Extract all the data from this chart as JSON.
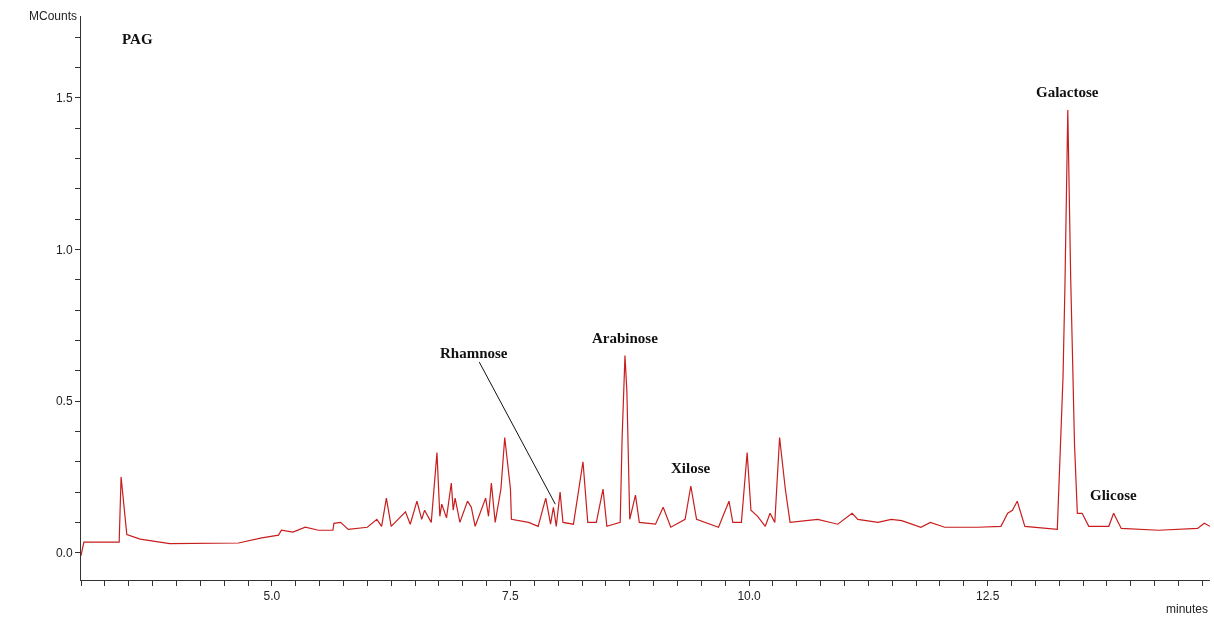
{
  "chart_data": {
    "type": "line",
    "title": "PAG",
    "xlabel": "minutes",
    "ylabel": "MCounts",
    "x": [
      3.0,
      3.03,
      3.4,
      3.42,
      3.48,
      3.62,
      3.93,
      4.65,
      4.88,
      5.07,
      5.1,
      5.22,
      5.35,
      5.49,
      5.64,
      5.65,
      5.72,
      5.8,
      6.0,
      6.1,
      6.15,
      6.2,
      6.25,
      6.4,
      6.45,
      6.52,
      6.57,
      6.6,
      6.67,
      6.73,
      6.76,
      6.78,
      6.83,
      6.88,
      6.9,
      6.92,
      6.97,
      7.05,
      7.09,
      7.13,
      7.24,
      7.27,
      7.3,
      7.34,
      7.4,
      7.44,
      7.5,
      7.51,
      7.69,
      7.79,
      7.87,
      7.92,
      7.95,
      7.98,
      8.02,
      8.05,
      8.16,
      8.26,
      8.31,
      8.4,
      8.47,
      8.51,
      8.65,
      8.67,
      8.7,
      8.72,
      8.75,
      8.81,
      8.85,
      9.02,
      9.1,
      9.18,
      9.33,
      9.39,
      9.45,
      9.68,
      9.79,
      9.83,
      9.92,
      9.98,
      10.02,
      10.09,
      10.17,
      10.22,
      10.27,
      10.32,
      10.38,
      10.43,
      10.72,
      10.93,
      11.08,
      11.14,
      11.35,
      11.49,
      11.6,
      11.8,
      11.9,
      12.05,
      12.4,
      12.64,
      12.71,
      12.76,
      12.81,
      12.89,
      13.23,
      13.29,
      13.31,
      13.34,
      13.37,
      13.39,
      13.41,
      13.44,
      13.49,
      13.56,
      13.77,
      13.82,
      13.9,
      14.29,
      14.7,
      14.77,
      14.83
    ],
    "series": [
      {
        "color": "#c81e1e",
        "values": [
          -0.01,
          0.035,
          0.035,
          0.25,
          0.06,
          0.045,
          0.03,
          0.032,
          0.048,
          0.058,
          0.074,
          0.068,
          0.084,
          0.074,
          0.074,
          0.097,
          0.1,
          0.077,
          0.084,
          0.11,
          0.087,
          0.18,
          0.087,
          0.135,
          0.094,
          0.17,
          0.11,
          0.14,
          0.1,
          0.33,
          0.12,
          0.16,
          0.115,
          0.23,
          0.14,
          0.18,
          0.1,
          0.17,
          0.15,
          0.087,
          0.18,
          0.12,
          0.23,
          0.1,
          0.21,
          0.38,
          0.21,
          0.11,
          0.1,
          0.087,
          0.18,
          0.094,
          0.15,
          0.087,
          0.2,
          0.1,
          0.094,
          0.3,
          0.1,
          0.1,
          0.21,
          0.087,
          0.1,
          0.38,
          0.65,
          0.53,
          0.11,
          0.19,
          0.1,
          0.094,
          0.15,
          0.084,
          0.11,
          0.22,
          0.11,
          0.084,
          0.17,
          0.1,
          0.1,
          0.33,
          0.14,
          0.12,
          0.087,
          0.13,
          0.1,
          0.38,
          0.21,
          0.1,
          0.11,
          0.094,
          0.13,
          0.11,
          0.1,
          0.11,
          0.106,
          0.084,
          0.1,
          0.084,
          0.084,
          0.087,
          0.13,
          0.14,
          0.17,
          0.087,
          0.077,
          0.58,
          0.88,
          1.46,
          0.91,
          0.64,
          0.36,
          0.13,
          0.13,
          0.087,
          0.087,
          0.13,
          0.08,
          0.074,
          0.08,
          0.097,
          0.087
        ]
      }
    ],
    "annotations": [
      {
        "text": "Rhamnose",
        "x": 7.97,
        "y": 0.16
      },
      {
        "text": "Arabinose",
        "x": 8.7,
        "y": 0.65
      },
      {
        "text": "Xilose",
        "x": 9.39,
        "y": 0.22
      },
      {
        "text": "Galactose",
        "x": 13.34,
        "y": 1.46
      },
      {
        "text": "Glicose",
        "x": 13.82,
        "y": 0.13
      }
    ],
    "xlim": [
      3.0,
      14.83
    ],
    "ylim": [
      -0.09,
      1.77
    ],
    "xticks": [
      {
        "value": 3.0,
        "label": null
      },
      {
        "value": 3.25,
        "label": null
      },
      {
        "value": 3.5,
        "label": null
      },
      {
        "value": 3.75,
        "label": null
      },
      {
        "value": 4.0,
        "label": null
      },
      {
        "value": 4.25,
        "label": null
      },
      {
        "value": 4.5,
        "label": null
      },
      {
        "value": 4.75,
        "label": null
      },
      {
        "value": 5.0,
        "label": "5.0"
      },
      {
        "value": 5.25,
        "label": null
      },
      {
        "value": 5.5,
        "label": null
      },
      {
        "value": 5.75,
        "label": null
      },
      {
        "value": 6.0,
        "label": null
      },
      {
        "value": 6.25,
        "label": null
      },
      {
        "value": 6.5,
        "label": null
      },
      {
        "value": 6.75,
        "label": null
      },
      {
        "value": 7.0,
        "label": null
      },
      {
        "value": 7.25,
        "label": null
      },
      {
        "value": 7.5,
        "label": "7.5"
      },
      {
        "value": 7.75,
        "label": null
      },
      {
        "value": 8.0,
        "label": null
      },
      {
        "value": 8.25,
        "label": null
      },
      {
        "value": 8.5,
        "label": null
      },
      {
        "value": 8.75,
        "label": null
      },
      {
        "value": 9.0,
        "label": null
      },
      {
        "value": 9.25,
        "label": null
      },
      {
        "value": 9.5,
        "label": null
      },
      {
        "value": 9.75,
        "label": null
      },
      {
        "value": 10.0,
        "label": "10.0"
      },
      {
        "value": 10.25,
        "label": null
      },
      {
        "value": 10.5,
        "label": null
      },
      {
        "value": 10.75,
        "label": null
      },
      {
        "value": 11.0,
        "label": null
      },
      {
        "value": 11.25,
        "label": null
      },
      {
        "value": 11.5,
        "label": null
      },
      {
        "value": 11.75,
        "label": null
      },
      {
        "value": 12.0,
        "label": null
      },
      {
        "value": 12.25,
        "label": null
      },
      {
        "value": 12.5,
        "label": "12.5"
      },
      {
        "value": 12.75,
        "label": null
      },
      {
        "value": 13.0,
        "label": null
      },
      {
        "value": 13.25,
        "label": null
      },
      {
        "value": 13.5,
        "label": null
      },
      {
        "value": 13.75,
        "label": null
      },
      {
        "value": 14.0,
        "label": null
      },
      {
        "value": 14.25,
        "label": null
      },
      {
        "value": 14.5,
        "label": null
      },
      {
        "value": 14.75,
        "label": null
      }
    ],
    "yticks": [
      {
        "value": 0.0,
        "label": "0.0"
      },
      {
        "value": 0.1,
        "label": null
      },
      {
        "value": 0.2,
        "label": null
      },
      {
        "value": 0.3,
        "label": null
      },
      {
        "value": 0.4,
        "label": null
      },
      {
        "value": 0.5,
        "label": "0.5"
      },
      {
        "value": 0.6,
        "label": null
      },
      {
        "value": 0.7,
        "label": null
      },
      {
        "value": 0.8,
        "label": null
      },
      {
        "value": 0.9,
        "label": null
      },
      {
        "value": 1.0,
        "label": "1.0"
      },
      {
        "value": 1.1,
        "label": null
      },
      {
        "value": 1.2,
        "label": null
      },
      {
        "value": 1.3,
        "label": null
      },
      {
        "value": 1.4,
        "label": null
      },
      {
        "value": 1.5,
        "label": "1.5"
      },
      {
        "value": 1.6,
        "label": null
      },
      {
        "value": 1.7,
        "label": null
      }
    ],
    "marker": "none",
    "line_style": "solid"
  }
}
